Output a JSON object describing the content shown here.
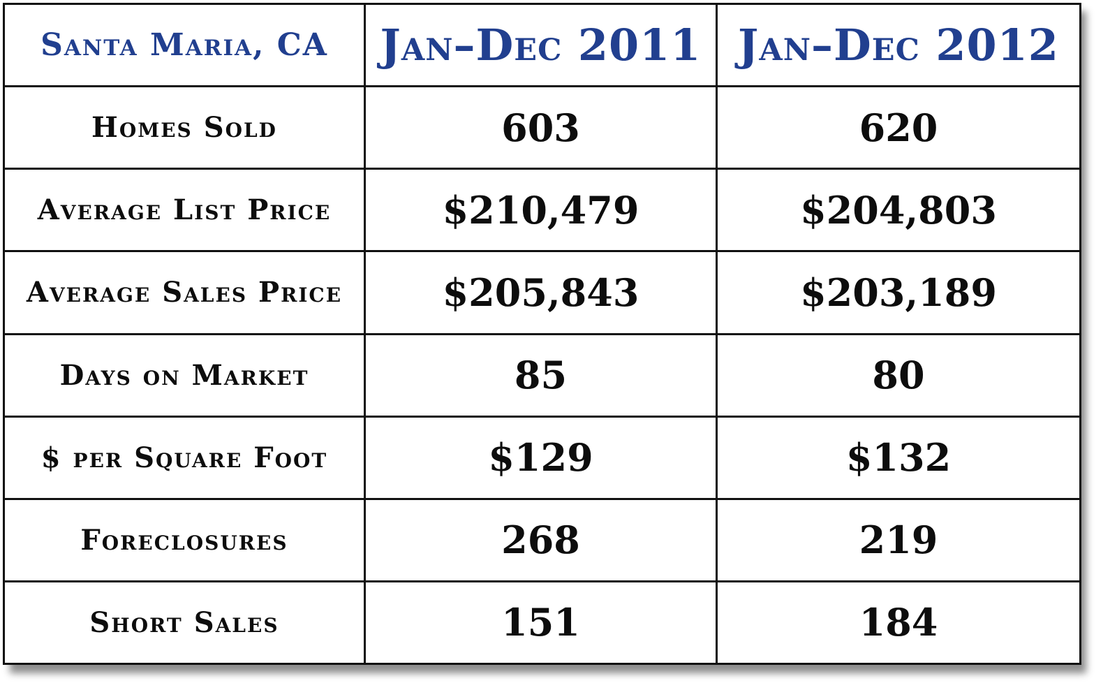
{
  "table": {
    "header": {
      "location": "Santa Maria, CA",
      "period_1": "Jan–Dec 2011",
      "period_2": "Jan–Dec 2012"
    },
    "rows": [
      {
        "label": "Homes Sold",
        "v2011": "603",
        "v2012": "620"
      },
      {
        "label": "Average List Price",
        "v2011": "$210,479",
        "v2012": "$204,803"
      },
      {
        "label": "Average Sales Price",
        "v2011": "$205,843",
        "v2012": "$203,189"
      },
      {
        "label": "Days on Market",
        "v2011": "85",
        "v2012": "80"
      },
      {
        "label": "$ per Square Foot",
        "v2011": "$129",
        "v2012": "$132"
      },
      {
        "label": "Foreclosures",
        "v2011": "268",
        "v2012": "219"
      },
      {
        "label": "Short Sales",
        "v2011": "151",
        "v2012": "184"
      }
    ]
  },
  "colors": {
    "header_text": "#213f8f",
    "body_text": "#0d0d0d",
    "border": "#111111"
  }
}
